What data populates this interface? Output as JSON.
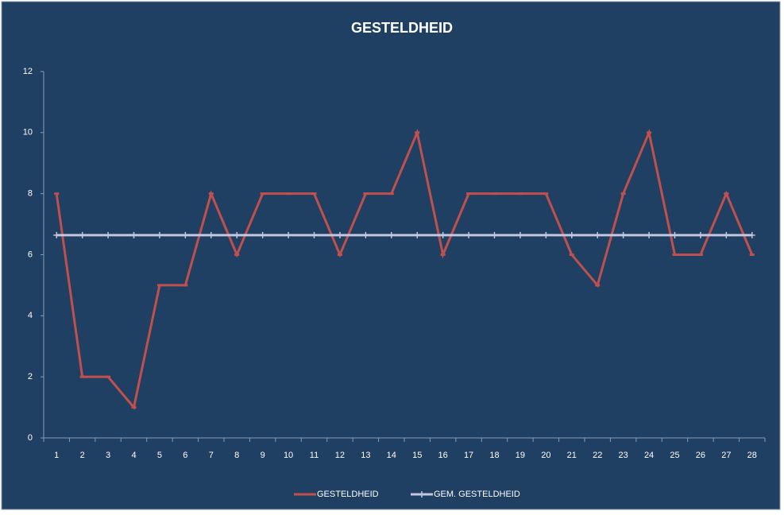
{
  "chart_data": {
    "type": "line",
    "title": "GESTELDHEID",
    "categories": [
      1,
      2,
      3,
      4,
      5,
      6,
      7,
      8,
      9,
      10,
      11,
      12,
      13,
      14,
      15,
      16,
      17,
      18,
      19,
      20,
      21,
      22,
      23,
      24,
      25,
      26,
      27,
      28
    ],
    "series": [
      {
        "name": "GESTELDHEID",
        "color": "#c0504d",
        "values": [
          8,
          2,
          2,
          1,
          5,
          5,
          8,
          6,
          8,
          8,
          8,
          6,
          8,
          8,
          10,
          6,
          8,
          8,
          8,
          8,
          6,
          5,
          8,
          10,
          6,
          6,
          8,
          6
        ]
      },
      {
        "name": "GEM. GESTELDHEID",
        "color": "#c3c6e0",
        "values": [
          6.64,
          6.64,
          6.64,
          6.64,
          6.64,
          6.64,
          6.64,
          6.64,
          6.64,
          6.64,
          6.64,
          6.64,
          6.64,
          6.64,
          6.64,
          6.64,
          6.64,
          6.64,
          6.64,
          6.64,
          6.64,
          6.64,
          6.64,
          6.64,
          6.64,
          6.64,
          6.64,
          6.64
        ]
      }
    ],
    "ylim": [
      0,
      12
    ],
    "yticks": [
      0,
      2,
      4,
      6,
      8,
      10,
      12
    ],
    "grid": false,
    "legend": "bottom"
  }
}
